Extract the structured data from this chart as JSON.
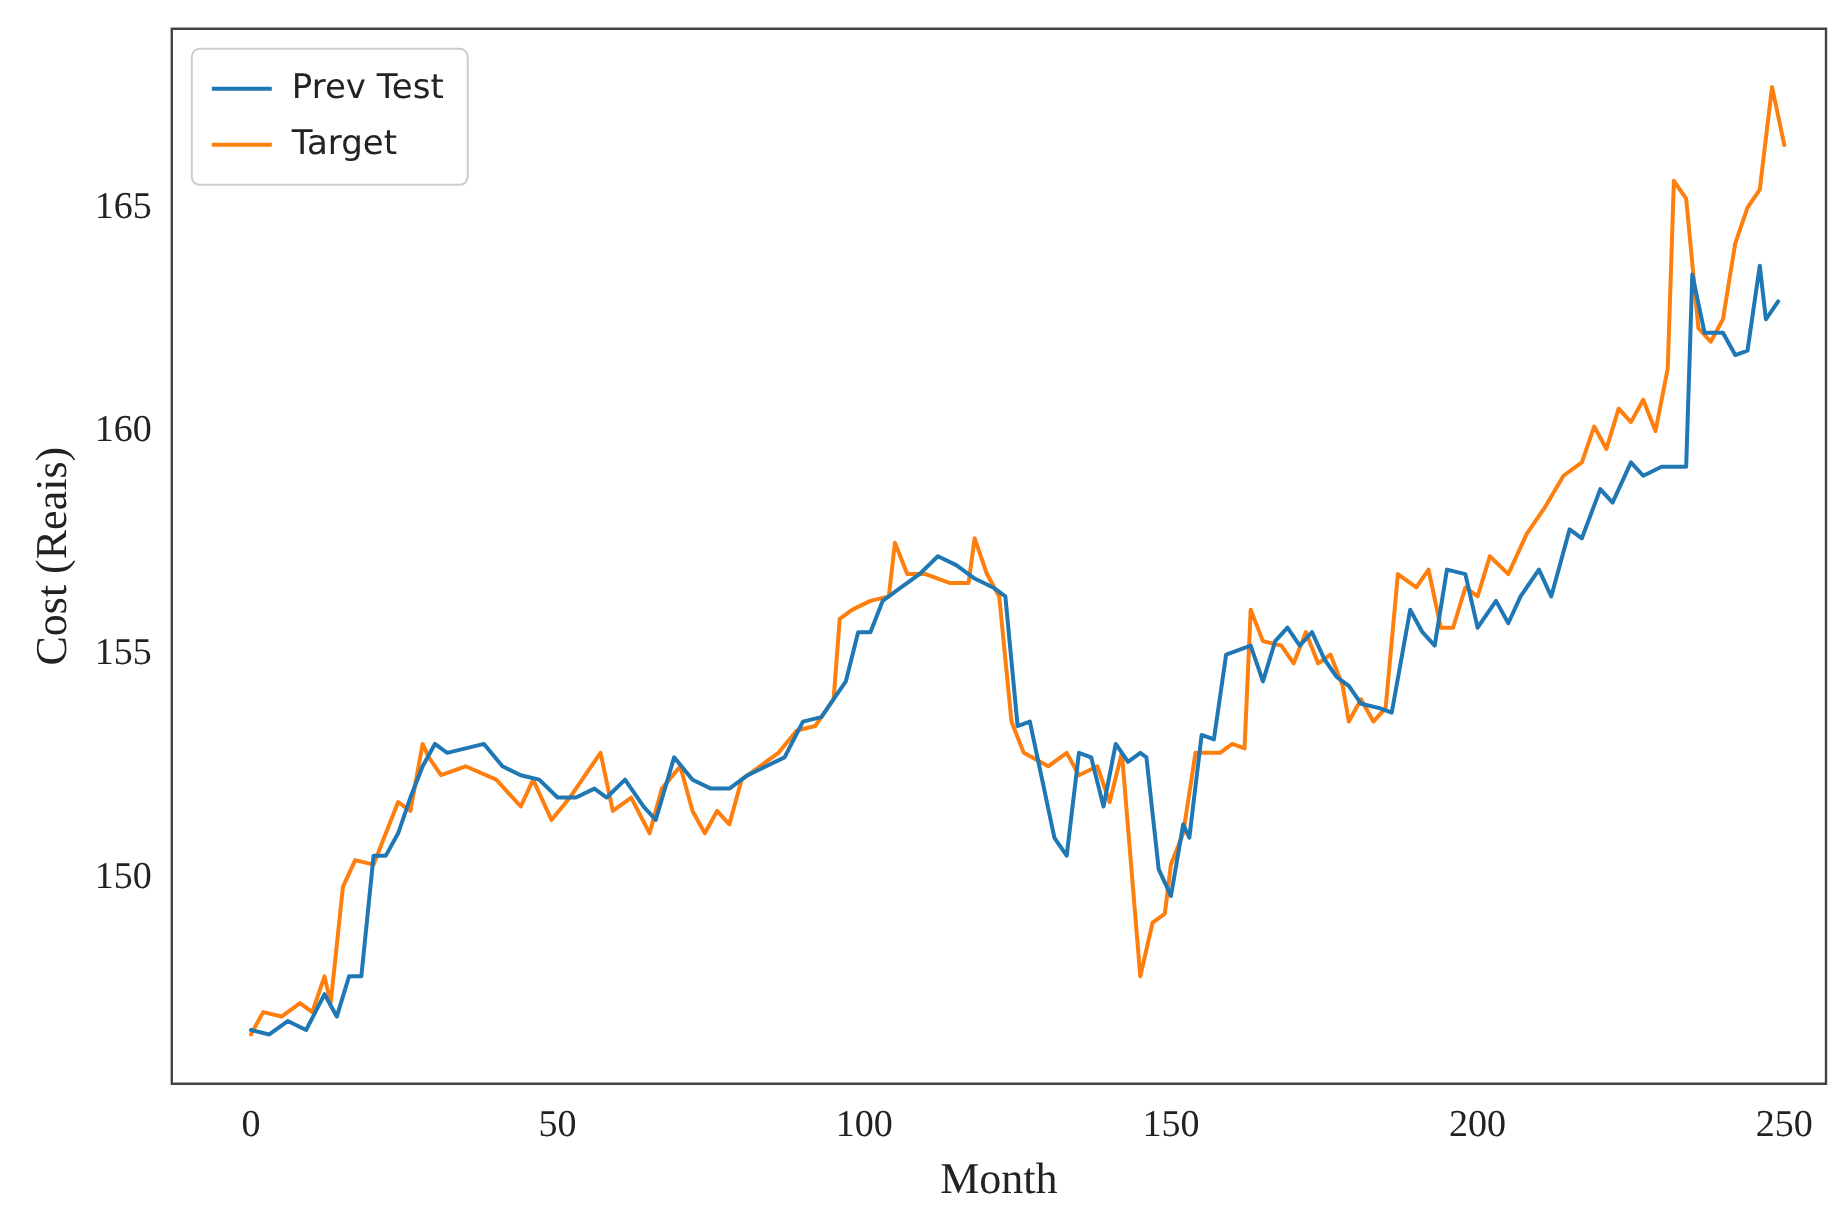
{
  "chart_data": {
    "type": "line",
    "xlabel": "Month",
    "ylabel": "Cost (Reais)",
    "xlim": [
      -12.9,
      256.8
    ],
    "ylim": [
      145.4,
      169
    ],
    "xticks": [
      0,
      50,
      100,
      150,
      200,
      250
    ],
    "yticks": [
      150,
      155,
      160,
      165
    ],
    "grid": false,
    "legend": "top left",
    "marker": "none",
    "line_style": "solid",
    "series": [
      {
        "name": "Prev Test",
        "color": "#1f77b4",
        "x": [
          0,
          3,
          6,
          9,
          12,
          14,
          16,
          18,
          20,
          22,
          24,
          26,
          28,
          30,
          32,
          35,
          38,
          41,
          44,
          47,
          50,
          53,
          56,
          58,
          61,
          64,
          66,
          69,
          72,
          75,
          78,
          81,
          84,
          87,
          90,
          93,
          95,
          97,
          99,
          101,
          103,
          106,
          109,
          112,
          115,
          118,
          121,
          123,
          125,
          127,
          129,
          131,
          133,
          135,
          137,
          139,
          141,
          143,
          145,
          146,
          148,
          150,
          152,
          153,
          155,
          157,
          159,
          161,
          163,
          165,
          167,
          169,
          171,
          173,
          175,
          177,
          179,
          181,
          184,
          186,
          189,
          191,
          193,
          195,
          198,
          200,
          203,
          205,
          207,
          210,
          212,
          215,
          217,
          220,
          222,
          225,
          227,
          230,
          232,
          234,
          235,
          237,
          240,
          242,
          244,
          246,
          247,
          249
        ],
        "values": [
          146.6,
          146.5,
          146.8,
          146.6,
          147.4,
          146.9,
          147.8,
          147.8,
          150.5,
          150.5,
          151,
          151.8,
          152.5,
          153,
          152.8,
          152.9,
          153,
          152.5,
          152.3,
          152.2,
          151.8,
          151.8,
          152,
          151.8,
          152.2,
          151.6,
          151.3,
          152.7,
          152.2,
          152,
          152,
          152.3,
          152.5,
          152.7,
          153.5,
          153.6,
          154,
          154.4,
          155.5,
          155.5,
          156.2,
          156.5,
          156.8,
          157.2,
          157,
          156.7,
          156.5,
          156.3,
          153.4,
          153.5,
          152.2,
          150.9,
          150.5,
          152.8,
          152.7,
          151.6,
          153,
          152.6,
          152.8,
          152.7,
          150.2,
          149.6,
          151.2,
          150.9,
          153.2,
          153.1,
          155,
          155.1,
          155.2,
          154.4,
          155.3,
          155.6,
          155.2,
          155.5,
          154.9,
          154.5,
          154.3,
          153.9,
          153.8,
          153.7,
          156,
          155.5,
          155.2,
          156.9,
          156.8,
          155.6,
          156.2,
          155.7,
          156.3,
          156.9,
          156.3,
          157.8,
          157.6,
          158.7,
          158.4,
          159.3,
          159,
          159.2,
          159.2,
          159.2,
          163.5,
          162.2,
          162.2,
          161.7,
          161.8,
          163.7,
          162.5,
          162.9
        ]
      },
      {
        "name": "Target",
        "color": "#ff7f0e",
        "x": [
          0,
          2,
          5,
          8,
          10,
          12,
          13,
          15,
          17,
          20,
          22,
          24,
          26,
          28,
          29,
          31,
          35,
          40,
          44,
          46,
          49,
          52,
          55,
          57,
          59,
          62,
          65,
          67,
          70,
          72,
          74,
          76,
          78,
          80,
          83,
          86,
          89,
          92,
          95,
          96,
          98,
          101,
          104,
          105,
          107,
          110,
          114,
          117,
          118,
          120,
          122,
          124,
          126,
          130,
          133,
          135,
          138,
          140,
          142,
          145,
          147,
          149,
          150,
          152,
          154,
          158,
          160,
          162,
          163,
          165,
          168,
          170,
          172,
          174,
          176,
          178,
          179,
          181,
          183,
          185,
          187,
          190,
          192,
          194,
          196,
          198,
          200,
          202,
          205,
          208,
          211,
          214,
          217,
          219,
          221,
          223,
          225,
          227,
          229,
          231,
          232,
          234,
          236,
          238,
          240,
          242,
          244,
          246,
          248,
          250
        ],
        "values": [
          146.5,
          147,
          146.9,
          147.2,
          147,
          147.8,
          147.2,
          149.8,
          150.4,
          150.3,
          151,
          151.7,
          151.5,
          153,
          152.7,
          152.3,
          152.5,
          152.2,
          151.6,
          152.2,
          151.3,
          151.8,
          152.4,
          152.8,
          151.5,
          151.8,
          151,
          152,
          152.5,
          151.5,
          151,
          151.5,
          151.2,
          152.2,
          152.5,
          152.8,
          153.3,
          153.4,
          154,
          155.8,
          156,
          156.2,
          156.3,
          157.5,
          156.8,
          156.8,
          156.6,
          156.6,
          157.6,
          156.8,
          156.3,
          153.5,
          152.8,
          152.5,
          152.8,
          152.3,
          152.5,
          151.7,
          152.8,
          147.8,
          149,
          149.2,
          150.3,
          151,
          152.8,
          152.8,
          153,
          152.9,
          156,
          155.3,
          155.2,
          154.8,
          155.5,
          154.8,
          155,
          154.3,
          153.5,
          154,
          153.5,
          153.8,
          156.8,
          156.5,
          156.9,
          155.6,
          155.6,
          156.5,
          156.3,
          157.2,
          156.8,
          157.7,
          158.3,
          159,
          159.3,
          160.1,
          159.6,
          160.5,
          160.2,
          160.7,
          160,
          161.4,
          165.6,
          165.2,
          162.3,
          162,
          162.5,
          164.2,
          165,
          165.4,
          167.7,
          166.4
        ]
      }
    ]
  }
}
